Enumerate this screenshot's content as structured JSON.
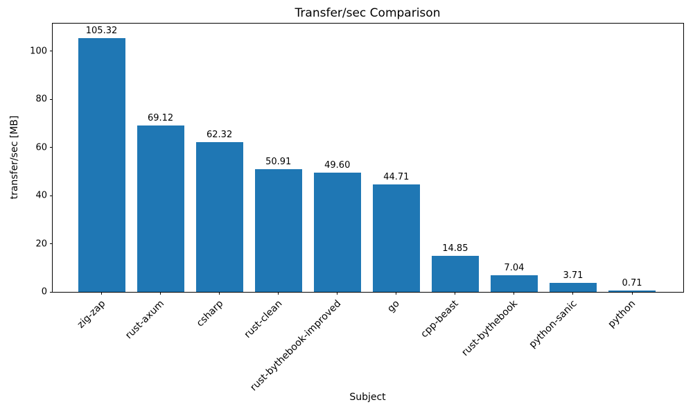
{
  "chart_data": {
    "type": "bar",
    "title": "Transfer/sec Comparison",
    "xlabel": "Subject",
    "ylabel": "transfer/sec [MB]",
    "categories": [
      "zig-zap",
      "rust-axum",
      "csharp",
      "rust-clean",
      "rust-bythebook-improved",
      "go",
      "cpp-beast",
      "rust-bythebook",
      "python-sanic",
      "python"
    ],
    "values": [
      105.32,
      69.12,
      62.32,
      50.91,
      49.6,
      44.71,
      14.85,
      7.04,
      3.71,
      0.71
    ],
    "bar_labels": [
      "105.32",
      "69.12",
      "62.32",
      "50.91",
      "49.60",
      "44.71",
      "14.85",
      "7.04",
      "3.71",
      "0.71"
    ],
    "ytick_values": [
      0,
      20,
      40,
      60,
      80,
      100
    ],
    "ytick_labels": [
      "0",
      "20",
      "40",
      "60",
      "80",
      "100"
    ],
    "ylim": [
      0,
      111.4
    ],
    "bar_color": "#1f77b4",
    "grid": false,
    "legend": "none",
    "xtick_rotation_deg": 45
  }
}
